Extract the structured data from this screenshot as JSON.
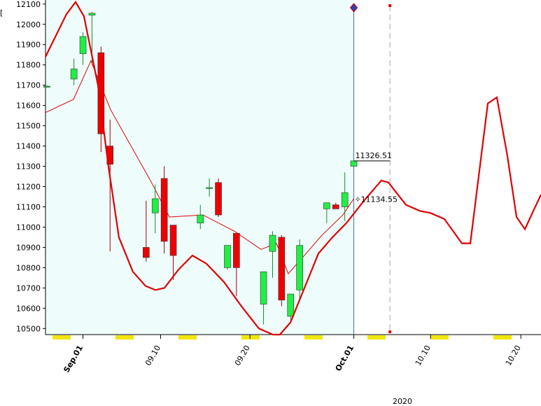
{
  "chart_data": {
    "type": "candlestick",
    "year_label": "2020",
    "xlim": [
      -0.15,
      54.73
    ],
    "ylim": [
      10470,
      12120
    ],
    "yticks": [
      10500,
      10600,
      10700,
      10800,
      10900,
      11000,
      11100,
      11200,
      11300,
      11400,
      11500,
      11600,
      11700,
      11800,
      11900,
      12000,
      12100
    ],
    "xticks": [
      {
        "value": 4,
        "label": "Sep.01"
      },
      {
        "value": 12.6,
        "label": "09.10"
      },
      {
        "value": 22.5,
        "label": "09.20"
      },
      {
        "value": 34,
        "label": "Oct.01"
      },
      {
        "value": 42.5,
        "label": "10.10"
      },
      {
        "value": 52.5,
        "label": "10.20"
      }
    ],
    "xtick_colors": [
      "#8b0000",
      "#808080",
      "#808080",
      "#8b0000",
      "#808080",
      "#808080"
    ],
    "up_color": "#22ee44",
    "down_color": "#ee0000",
    "history_background": "#eefcfc",
    "current_x": 34,
    "forecast_end_x": 38,
    "candles": {
      "x": [
        0,
        3,
        4,
        5,
        6,
        7,
        11,
        12,
        13,
        14,
        17,
        18,
        19,
        20,
        21,
        24,
        25,
        26,
        27,
        28,
        31,
        32,
        33,
        34
      ],
      "open": [
        11690,
        11730,
        11855,
        12045,
        11860,
        11400,
        10900,
        11070,
        11240,
        11010,
        11020,
        11190,
        11220,
        10800,
        10970,
        10620,
        10880,
        10950,
        10560,
        10690,
        11090,
        11110,
        11100,
        11300
      ],
      "high": [
        11700,
        11830,
        11960,
        12060,
        11890,
        11530,
        11130,
        11210,
        11300,
        11010,
        11110,
        11240,
        11240,
        10910,
        10970,
        10780,
        10980,
        10960,
        10670,
        10940,
        11120,
        11120,
        11270,
        11330
      ],
      "low": [
        11690,
        11700,
        11800,
        11800,
        11370,
        10880,
        10830,
        10970,
        10870,
        10740,
        10990,
        11150,
        11050,
        10790,
        10660,
        10520,
        10750,
        10610,
        10540,
        10640,
        11020,
        11090,
        11030,
        11300
      ],
      "close": [
        11695,
        11780,
        11940,
        12055,
        11460,
        11310,
        10850,
        11140,
        10930,
        10860,
        11060,
        11195,
        11060,
        10910,
        10800,
        10780,
        10960,
        10640,
        10670,
        10910,
        11120,
        11090,
        11170,
        11326.51
      ]
    },
    "forecast": {
      "color": "#e00000",
      "x": [
        -0.15,
        2.17,
        3.18,
        4.11,
        5.66,
        6.82,
        7.98,
        9.53,
        10.93,
        12.02,
        13.02,
        14.57,
        16.12,
        17.67,
        19.61,
        21.55,
        23.49,
        25.04,
        25.81,
        26.98,
        28.53,
        30.08,
        31.63,
        33.18,
        35.12,
        37.05,
        37.83,
        39.77,
        41.32,
        42.48,
        44.03,
        45.97,
        46.9,
        48.84,
        49.84,
        51.01,
        52.02,
        52.95,
        53.88,
        54.73
      ],
      "values": [
        11840,
        12050,
        12110,
        12040,
        11700,
        11300,
        10950,
        10780,
        10710,
        10690,
        10700,
        10790,
        10860,
        10820,
        10730,
        10610,
        10500,
        10470,
        10470,
        10530,
        10700,
        10870,
        10950,
        11020,
        11130,
        11230,
        11220,
        11110,
        11080,
        11070,
        11040,
        10920,
        10920,
        11610,
        11640,
        11350,
        11050,
        10990,
        11080,
        11160
      ]
    },
    "average": {
      "color": "#e00000",
      "x": [
        -0.15,
        2.95,
        4.88,
        7.05,
        11.47,
        13.57,
        17.29,
        20.78,
        23.72,
        25.43,
        26.74,
        28.91,
        30.46,
        32.79,
        34
      ],
      "values": [
        11565,
        11630,
        11820,
        11580,
        11230,
        11050,
        11060,
        10980,
        10890,
        10920,
        10770,
        10880,
        10960,
        11060,
        11140
      ]
    },
    "price_labels": [
      11326.51,
      11134.55
    ]
  }
}
